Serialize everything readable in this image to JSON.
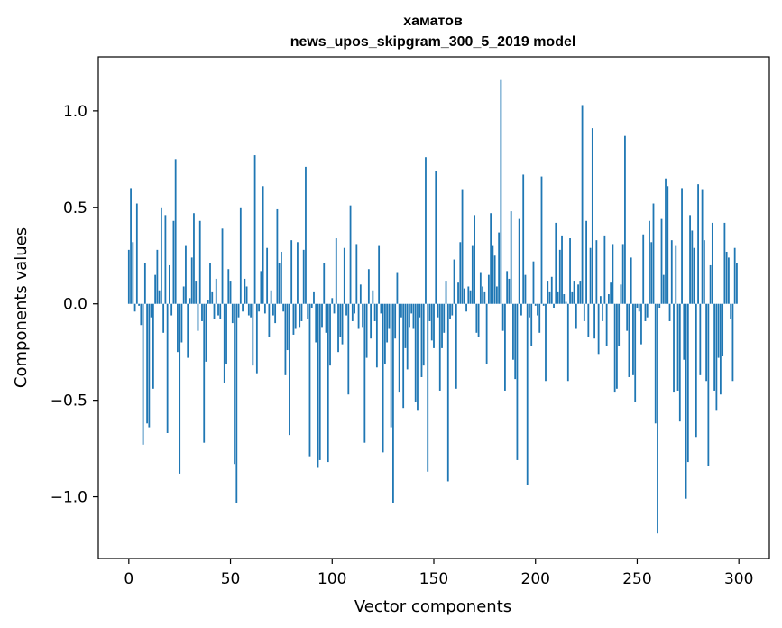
{
  "chart_data": {
    "type": "bar",
    "title_line1": "хаматов",
    "title_line2": "news_upos_skipgram_300_5_2019 model",
    "xlabel": "Vector components",
    "ylabel": "Components values",
    "xlim": [
      -15,
      315
    ],
    "ylim": [
      -1.32,
      1.28
    ],
    "xticks": [
      0,
      50,
      100,
      150,
      200,
      250,
      300
    ],
    "xtick_labels": [
      "0",
      "50",
      "100",
      "150",
      "200",
      "250",
      "300"
    ],
    "yticks": [
      -1.0,
      -0.5,
      0.0,
      0.5,
      1.0
    ],
    "ytick_labels": [
      "−1.0",
      "−0.5",
      "0.0",
      "0.5",
      "1.0"
    ],
    "bar_color": "#1f77b4",
    "grid": false,
    "values": [
      0.28,
      0.6,
      0.32,
      -0.04,
      0.52,
      -0.01,
      -0.11,
      -0.73,
      0.21,
      -0.62,
      -0.64,
      -0.07,
      -0.44,
      0.15,
      0.28,
      0.07,
      0.5,
      -0.15,
      0.46,
      -0.67,
      0.2,
      -0.06,
      0.43,
      0.75,
      -0.25,
      -0.88,
      -0.2,
      0.09,
      0.3,
      -0.28,
      0.03,
      0.24,
      0.47,
      0.12,
      -0.14,
      0.43,
      -0.09,
      -0.72,
      -0.3,
      0.02,
      0.21,
      0.06,
      -0.08,
      0.13,
      -0.06,
      -0.08,
      0.39,
      -0.41,
      -0.31,
      0.18,
      0.12,
      -0.1,
      -0.83,
      -1.03,
      -0.07,
      0.5,
      -0.04,
      0.13,
      0.09,
      -0.06,
      -0.07,
      -0.32,
      0.77,
      -0.36,
      -0.04,
      0.17,
      0.61,
      -0.05,
      0.29,
      -0.17,
      0.07,
      -0.06,
      -0.1,
      0.49,
      0.21,
      0.27,
      -0.04,
      -0.37,
      -0.24,
      -0.68,
      0.33,
      -0.16,
      -0.13,
      0.32,
      -0.12,
      -0.09,
      0.28,
      0.71,
      -0.08,
      -0.79,
      -0.02,
      0.06,
      -0.2,
      -0.85,
      -0.81,
      -0.12,
      0.21,
      -0.15,
      -0.82,
      -0.32,
      0.03,
      -0.05,
      0.34,
      -0.25,
      -0.17,
      -0.21,
      0.29,
      -0.06,
      -0.47,
      0.51,
      -0.09,
      -0.05,
      0.31,
      -0.13,
      0.1,
      -0.12,
      -0.72,
      -0.28,
      0.18,
      -0.18,
      0.07,
      -0.09,
      -0.33,
      0.3,
      -0.05,
      -0.77,
      -0.31,
      -0.2,
      -0.13,
      -0.64,
      -1.03,
      -0.18,
      0.16,
      -0.46,
      -0.07,
      -0.54,
      -0.23,
      -0.34,
      -0.12,
      -0.05,
      -0.13,
      -0.51,
      -0.55,
      -0.07,
      -0.38,
      -0.32,
      0.76,
      -0.87,
      -0.09,
      -0.19,
      -0.23,
      0.69,
      -0.07,
      -0.45,
      -0.23,
      -0.15,
      0.12,
      -0.92,
      -0.08,
      -0.06,
      0.23,
      -0.44,
      0.11,
      0.32,
      0.59,
      0.08,
      -0.04,
      0.09,
      0.07,
      0.3,
      0.46,
      -0.15,
      -0.17,
      0.16,
      0.09,
      0.06,
      -0.31,
      0.15,
      0.47,
      0.3,
      0.25,
      0.09,
      0.37,
      1.16,
      -0.14,
      -0.45,
      0.17,
      0.13,
      0.48,
      -0.29,
      -0.39,
      -0.81,
      0.44,
      -0.06,
      0.67,
      0.15,
      -0.94,
      -0.07,
      -0.22,
      0.22,
      -0.01,
      -0.06,
      -0.15,
      0.66,
      -0.01,
      -0.4,
      0.12,
      0.06,
      0.14,
      -0.02,
      0.42,
      0.06,
      0.28,
      0.35,
      0.05,
      0.01,
      -0.4,
      0.34,
      0.06,
      0.12,
      -0.13,
      0.1,
      0.12,
      1.03,
      -0.09,
      0.43,
      -0.17,
      0.29,
      0.91,
      -0.18,
      0.33,
      -0.26,
      0.04,
      -0.09,
      0.35,
      -0.22,
      0.05,
      0.11,
      0.31,
      -0.46,
      -0.44,
      -0.22,
      0.1,
      0.31,
      0.87,
      -0.14,
      -0.38,
      0.24,
      -0.37,
      -0.51,
      -0.02,
      -0.04,
      -0.21,
      0.36,
      -0.09,
      -0.07,
      0.43,
      0.32,
      0.52,
      -0.62,
      -1.19,
      -0.02,
      0.44,
      0.15,
      0.65,
      0.61,
      -0.09,
      0.33,
      -0.46,
      0.3,
      -0.45,
      -0.61,
      0.6,
      -0.29,
      -1.01,
      -0.82,
      0.46,
      0.38,
      0.29,
      -0.69,
      0.62,
      -0.37,
      0.59,
      0.33,
      -0.4,
      -0.84,
      0.2,
      0.42,
      -0.45,
      -0.55,
      -0.28,
      -0.47,
      -0.27,
      0.42,
      0.27,
      0.24,
      -0.08,
      -0.4,
      0.29,
      0.21
    ]
  }
}
